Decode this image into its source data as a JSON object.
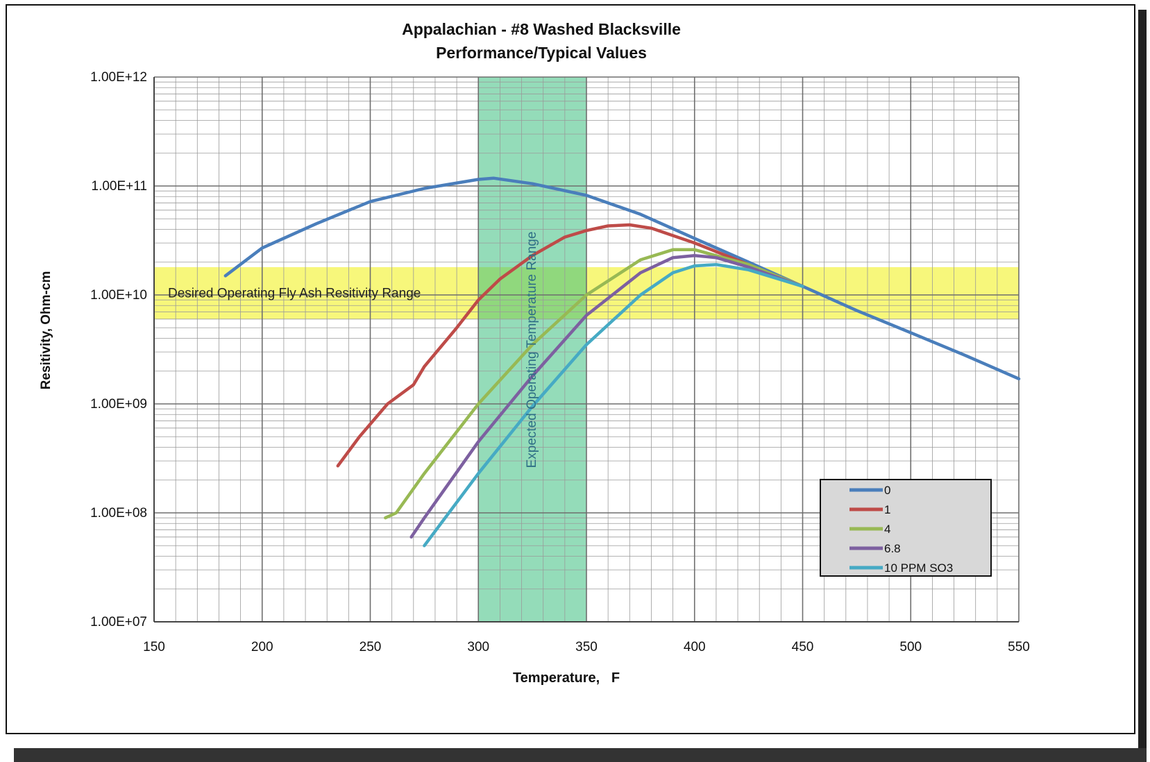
{
  "chart_data": {
    "type": "line",
    "title": "Appalachian - #8 Washed Blacksville",
    "subtitle": "Performance/Typical Values",
    "xlabel": "Temperature,   F",
    "ylabel": "Resitivity, Ohm-cm",
    "xlim": [
      150,
      550
    ],
    "ylim": [
      10000000.0,
      1000000000000.0
    ],
    "yscale": "log",
    "grid": true,
    "x_ticks": [
      "150",
      "200",
      "250",
      "300",
      "350",
      "400",
      "450",
      "500",
      "550"
    ],
    "y_ticks": [
      "1.00E+07",
      "1.00E+08",
      "1.00E+09",
      "1.00E+10",
      "1.00E+11",
      "1.00E+12"
    ],
    "legend_position": "bottom-right",
    "bands": [
      {
        "label": "Desired Operating Fly Ash Resitivity Range",
        "orientation": "horizontal",
        "y_range": [
          6000000000.0,
          18000000000.0
        ],
        "color": "#f5f55a"
      },
      {
        "label": "Expected Operating Temperature Range",
        "orientation": "vertical",
        "x_range": [
          300,
          350
        ],
        "color": "#3cc080"
      }
    ],
    "series": [
      {
        "name": "0",
        "color": "#4a7ebb",
        "x": [
          183,
          200,
          225,
          250,
          275,
          300,
          307,
          325,
          350,
          375,
          400,
          425,
          450,
          475,
          500,
          525,
          550
        ],
        "y": [
          15000000000.0,
          27000000000.0,
          45000000000.0,
          72000000000.0,
          95000000000.0,
          115000000000.0,
          118000000000.0,
          105000000000.0,
          82000000000.0,
          55000000000.0,
          33000000000.0,
          20000000000.0,
          12000000000.0,
          7200000000.0,
          4500000000.0,
          2800000000.0,
          1700000000.0
        ]
      },
      {
        "name": "1",
        "color": "#be4b48",
        "x": [
          235,
          245,
          258,
          270,
          275,
          290,
          300,
          310,
          325,
          340,
          350,
          360,
          370,
          380,
          400,
          425,
          450
        ],
        "y": [
          270000000.0,
          500000000.0,
          1000000000.0,
          1500000000.0,
          2200000000.0,
          5000000000.0,
          9000000000.0,
          14000000000.0,
          23000000000.0,
          34000000000.0,
          39000000000.0,
          43000000000.0,
          44000000000.0,
          41000000000.0,
          30000000000.0,
          19000000000.0,
          12000000000.0
        ]
      },
      {
        "name": "4",
        "color": "#98b954",
        "x": [
          257,
          262,
          275,
          300,
          325,
          350,
          375,
          390,
          400,
          425,
          450
        ],
        "y": [
          90000000.0,
          100000000.0,
          230000000.0,
          1000000000.0,
          3500000000.0,
          10000000000.0,
          21000000000.0,
          26000000000.0,
          26000000000.0,
          19000000000.0,
          12000000000.0
        ]
      },
      {
        "name": "6.8",
        "color": "#7d60a0",
        "x": [
          269,
          275,
          300,
          325,
          350,
          375,
          390,
          400,
          410,
          425,
          450
        ],
        "y": [
          60000000.0,
          90000000.0,
          450000000.0,
          1800000000.0,
          6500000000.0,
          16000000000.0,
          22000000000.0,
          23000000000.0,
          22000000000.0,
          18000000000.0,
          12000000000.0
        ]
      },
      {
        "name": "10 PPM SO3",
        "color": "#46aac4",
        "x": [
          275,
          300,
          325,
          350,
          375,
          390,
          400,
          410,
          425,
          450
        ],
        "y": [
          50000000.0,
          230000000.0,
          950000000.0,
          3500000000.0,
          10000000000.0,
          16000000000.0,
          18500000000.0,
          19000000000.0,
          17000000000.0,
          12000000000.0
        ]
      }
    ]
  }
}
